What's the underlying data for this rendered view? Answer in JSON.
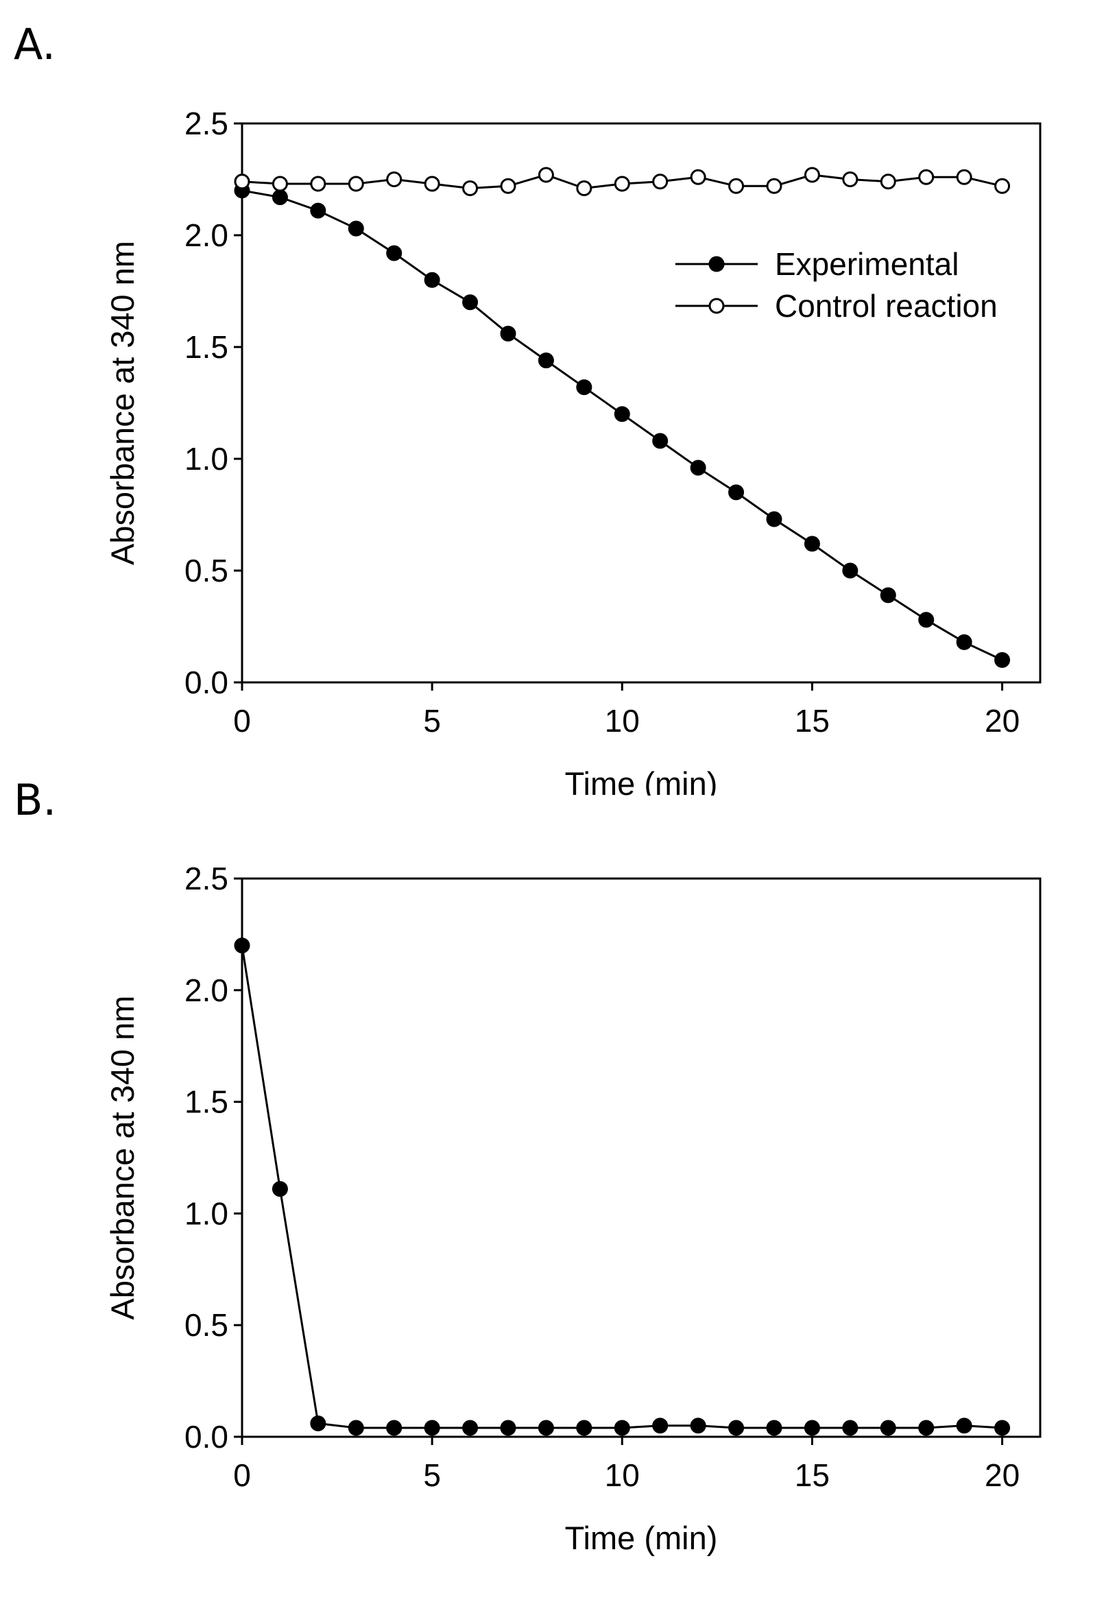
{
  "panels": {
    "a": {
      "label": "A."
    },
    "b": {
      "label": "B."
    }
  },
  "chart_data": [
    {
      "type": "line",
      "panel": "A.",
      "title": "",
      "xlabel": "Time (min)",
      "ylabel": "Absorbance at 340 nm",
      "xlim": [
        0,
        21
      ],
      "ylim": [
        0,
        2.5
      ],
      "xticks": [
        0,
        5,
        10,
        15,
        20
      ],
      "yticks": [
        "0.0",
        "0.5",
        "1.0",
        "1.5",
        "2.0",
        "2.5"
      ],
      "legend_position": "upper-right",
      "x": [
        0,
        1,
        2,
        3,
        4,
        5,
        6,
        7,
        8,
        9,
        10,
        11,
        12,
        13,
        14,
        15,
        16,
        17,
        18,
        19,
        20
      ],
      "series": [
        {
          "name": "Experimental",
          "marker": "filled-circle",
          "color": "#000000",
          "values": [
            2.2,
            2.17,
            2.11,
            2.03,
            1.92,
            1.8,
            1.7,
            1.56,
            1.44,
            1.32,
            1.2,
            1.08,
            0.96,
            0.85,
            0.73,
            0.62,
            0.5,
            0.39,
            0.28,
            0.18,
            0.1
          ]
        },
        {
          "name": "Control reaction",
          "marker": "open-circle",
          "color": "#000000",
          "values": [
            2.24,
            2.23,
            2.23,
            2.23,
            2.25,
            2.23,
            2.21,
            2.22,
            2.27,
            2.21,
            2.23,
            2.24,
            2.26,
            2.22,
            2.22,
            2.27,
            2.25,
            2.24,
            2.26,
            2.26,
            2.22
          ]
        }
      ]
    },
    {
      "type": "line",
      "panel": "B.",
      "title": "",
      "xlabel": "Time (min)",
      "ylabel": "Absorbance at 340 nm",
      "xlim": [
        0,
        21
      ],
      "ylim": [
        0,
        2.5
      ],
      "xticks": [
        0,
        5,
        10,
        15,
        20
      ],
      "yticks": [
        "0.0",
        "0.5",
        "1.0",
        "1.5",
        "2.0",
        "2.5"
      ],
      "x": [
        0,
        1,
        2,
        3,
        4,
        5,
        6,
        7,
        8,
        9,
        10,
        11,
        12,
        13,
        14,
        15,
        16,
        17,
        18,
        19,
        20
      ],
      "series": [
        {
          "name": "Experimental",
          "marker": "filled-circle",
          "color": "#000000",
          "values": [
            2.2,
            1.11,
            0.06,
            0.04,
            0.04,
            0.04,
            0.04,
            0.04,
            0.04,
            0.04,
            0.04,
            0.05,
            0.05,
            0.04,
            0.04,
            0.04,
            0.04,
            0.04,
            0.04,
            0.05,
            0.04
          ]
        }
      ]
    }
  ]
}
